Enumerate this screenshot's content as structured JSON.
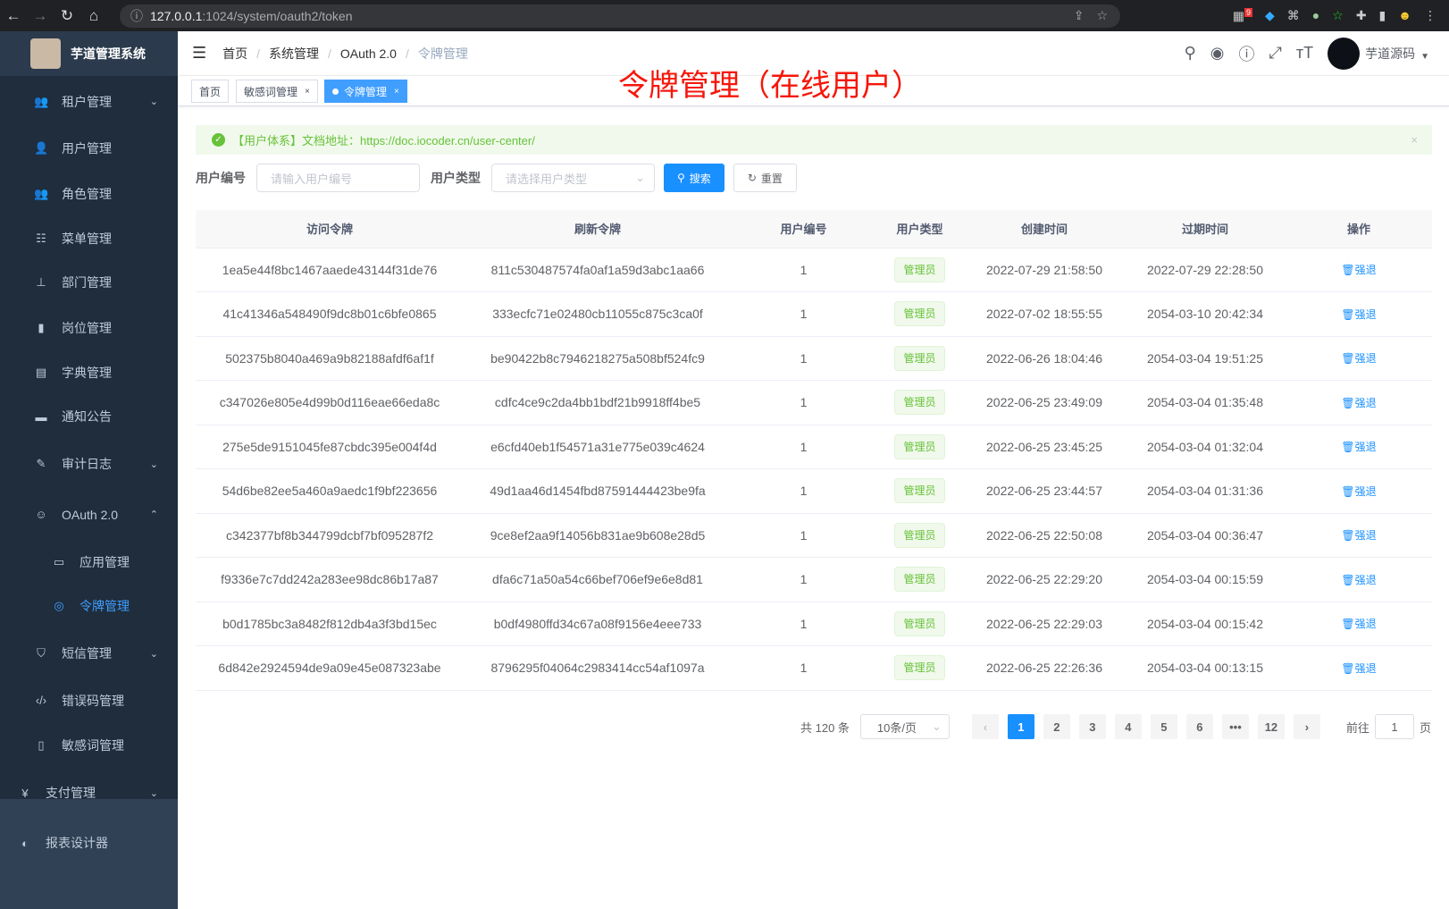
{
  "browser": {
    "url_host": "127.0.0.1",
    "url_path": ":1024/system/oauth2/token",
    "ext_badge": "9"
  },
  "sidebar": {
    "title": "芋道管理系统",
    "items": [
      {
        "label": "租户管理",
        "icon": "peoples-icon",
        "arrow": "⌄"
      },
      {
        "label": "用户管理",
        "icon": "user-icon"
      },
      {
        "label": "角色管理",
        "icon": "peoples-icon"
      },
      {
        "label": "菜单管理",
        "icon": "tree-table-icon"
      },
      {
        "label": "部门管理",
        "icon": "tree-icon"
      },
      {
        "label": "岗位管理",
        "icon": "post-icon"
      },
      {
        "label": "字典管理",
        "icon": "dict-icon"
      },
      {
        "label": "通知公告",
        "icon": "message-icon"
      },
      {
        "label": "审计日志",
        "icon": "log-icon",
        "arrow": "⌄"
      },
      {
        "label": "OAuth 2.0",
        "icon": "online-icon",
        "arrow": "⌃"
      },
      {
        "label": "应用管理",
        "icon": "application-icon",
        "sub": true
      },
      {
        "label": "令牌管理",
        "icon": "token-icon",
        "sub": true,
        "active": true
      },
      {
        "label": "短信管理",
        "icon": "validcode-icon",
        "arrow": "⌄"
      },
      {
        "label": "错误码管理",
        "icon": "code-icon"
      },
      {
        "label": "敏感词管理",
        "icon": "education-icon"
      },
      {
        "label": "支付管理",
        "icon": "money-icon",
        "arrow": "⌄"
      },
      {
        "label": "报表设计器",
        "icon": "chart-icon"
      }
    ]
  },
  "breadcrumb": [
    "首页",
    "系统管理",
    "OAuth 2.0",
    "令牌管理"
  ],
  "user": {
    "name": "芋道源码"
  },
  "tags": [
    {
      "label": "首页"
    },
    {
      "label": "敏感词管理",
      "close": "×"
    },
    {
      "label": "令牌管理",
      "close": "×",
      "active": true
    }
  ],
  "annotation": "令牌管理（在线用户）",
  "alert": {
    "text": "【用户体系】文档地址：https://doc.iocoder.cn/user-center/",
    "close": "×"
  },
  "search": {
    "user_id_label": "用户编号",
    "user_id_placeholder": "请输入用户编号",
    "user_type_label": "用户类型",
    "user_type_placeholder": "请选择用户类型",
    "search_button": "搜索",
    "reset_button": "重置"
  },
  "table": {
    "columns": [
      "访问令牌",
      "刷新令牌",
      "用户编号",
      "用户类型",
      "创建时间",
      "过期时间",
      "操作"
    ],
    "rows": [
      [
        "1ea5e44f8bc1467aaede43144f31de76",
        "811c530487574fa0af1a59d3abc1aa66",
        "1",
        "管理员",
        "2022-07-29 21:58:50",
        "2022-07-29 22:28:50",
        "强退"
      ],
      [
        "41c41346a548490f9dc8b01c6bfe0865",
        "333ecfc71e02480cb11055c875c3ca0f",
        "1",
        "管理员",
        "2022-07-02 18:55:55",
        "2054-03-10 20:42:34",
        "强退"
      ],
      [
        "502375b8040a469a9b82188afdf6af1f",
        "be90422b8c7946218275a508bf524fc9",
        "1",
        "管理员",
        "2022-06-26 18:04:46",
        "2054-03-04 19:51:25",
        "强退"
      ],
      [
        "c347026e805e4d99b0d116eae66eda8c",
        "cdfc4ce9c2da4bb1bdf21b9918ff4be5",
        "1",
        "管理员",
        "2022-06-25 23:49:09",
        "2054-03-04 01:35:48",
        "强退"
      ],
      [
        "275e5de9151045fe87cbdc395e004f4d",
        "e6cfd40eb1f54571a31e775e039c4624",
        "1",
        "管理员",
        "2022-06-25 23:45:25",
        "2054-03-04 01:32:04",
        "强退"
      ],
      [
        "54d6be82ee5a460a9aedc1f9bf223656",
        "49d1aa46d1454fbd87591444423be9fa",
        "1",
        "管理员",
        "2022-06-25 23:44:57",
        "2054-03-04 01:31:36",
        "强退"
      ],
      [
        "c342377bf8b344799dcbf7bf095287f2",
        "9ce8ef2aa9f14056b831ae9b608e28d5",
        "1",
        "管理员",
        "2022-06-25 22:50:08",
        "2054-03-04 00:36:47",
        "强退"
      ],
      [
        "f9336e7c7dd242a283ee98dc86b17a87",
        "dfa6c71a50a54c66bef706ef9e6e8d81",
        "1",
        "管理员",
        "2022-06-25 22:29:20",
        "2054-03-04 00:15:59",
        "强退"
      ],
      [
        "b0d1785bc3a8482f812db4a3f3bd15ec",
        "b0df4980ffd34c67a08f9156e4eee733",
        "1",
        "管理员",
        "2022-06-25 22:29:03",
        "2054-03-04 00:15:42",
        "强退"
      ],
      [
        "6d842e2924594de9a09e45e087323abe",
        "8796295f04064c2983414cc54af1097a",
        "1",
        "管理员",
        "2022-06-25 22:26:36",
        "2054-03-04 00:13:15",
        "强退"
      ]
    ]
  },
  "pagination": {
    "total": "共 120 条",
    "page_size": "10条/页",
    "pages": [
      "1",
      "2",
      "3",
      "4",
      "5",
      "6",
      "•••",
      "12"
    ],
    "current": "1",
    "goto_label": "前往",
    "goto_value": "1",
    "page_suffix": "页"
  }
}
